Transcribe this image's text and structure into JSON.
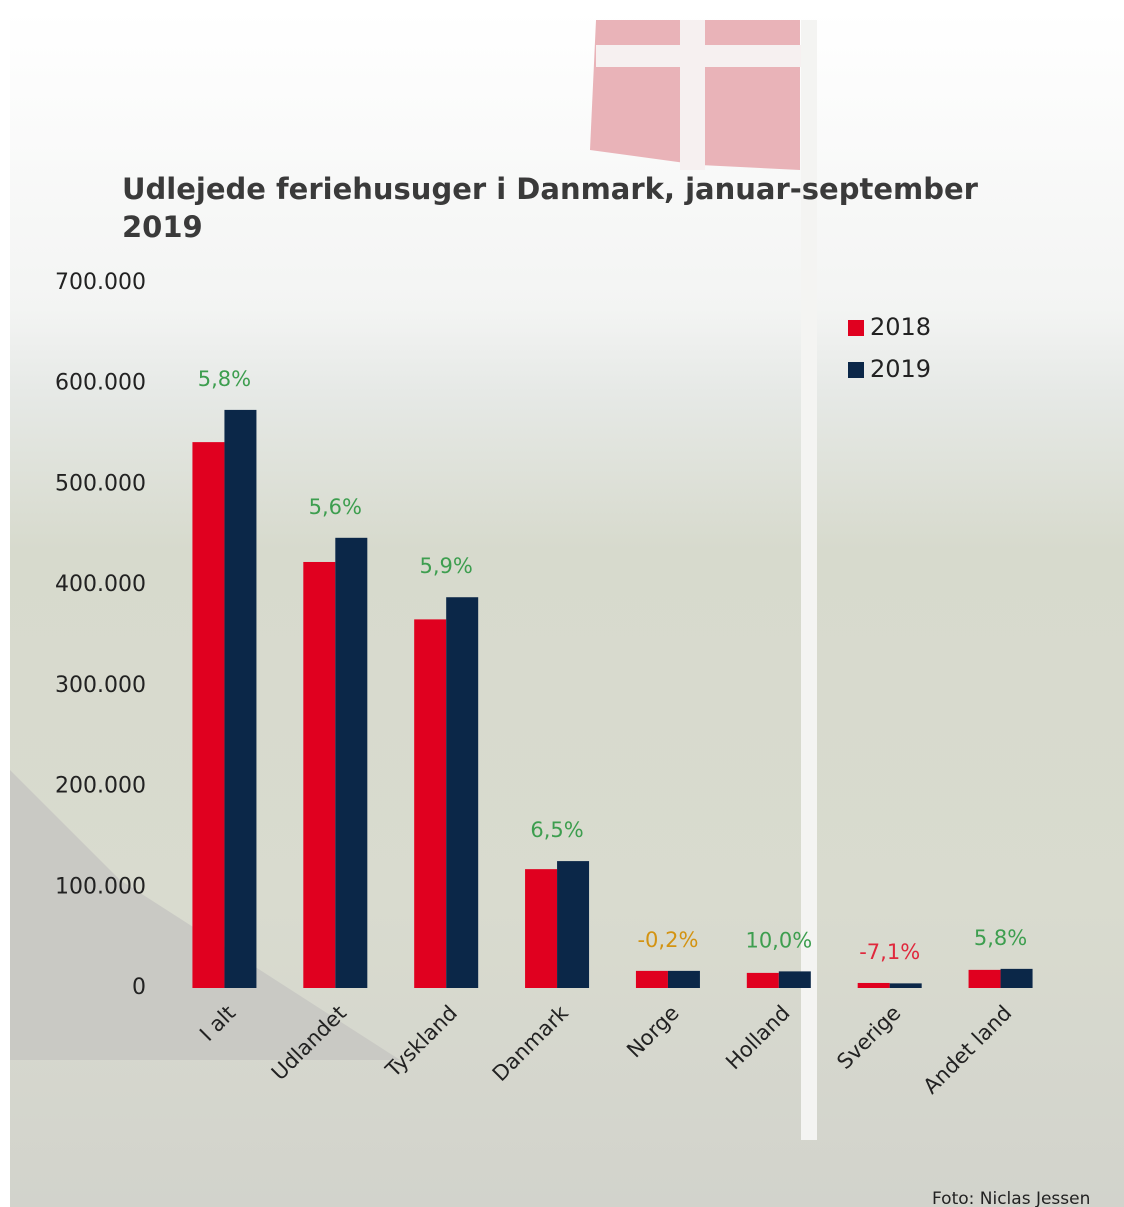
{
  "chart_data": {
    "type": "bar",
    "title": "Udlejede feriehusuger i Danmark, januar-september 2019",
    "categories": [
      "I alt",
      "Udlandet",
      "Tyskland",
      "Danmark",
      "Norge",
      "Holland",
      "Sverige",
      "Andet land"
    ],
    "series": [
      {
        "name": "2018",
        "color": "#e0001f",
        "values": [
          542000,
          423000,
          366000,
          118000,
          17000,
          15000,
          5000,
          18000
        ]
      },
      {
        "name": "2019",
        "color": "#0b2748",
        "values": [
          574000,
          447000,
          388000,
          126000,
          17000,
          16500,
          4600,
          19000
        ]
      }
    ],
    "change_labels": [
      "5,8%",
      "5,6%",
      "5,9%",
      "6,5%",
      "-0,2%",
      "10,0%",
      "-7,1%",
      "5,8%"
    ],
    "change_colors": [
      "#3d9e4f",
      "#3d9e4f",
      "#3d9e4f",
      "#3d9e4f",
      "#d39312",
      "#3d9e4f",
      "#e0283c",
      "#3d9e4f"
    ],
    "ylim": [
      0,
      700000
    ],
    "yticks": [
      0,
      {
        "value": 100000,
        "label": "100.000"
      },
      {
        "value": 200000,
        "label": "200.000"
      },
      {
        "value": 300000,
        "label": "300.000"
      },
      {
        "value": 400000,
        "label": "400.000"
      },
      {
        "value": 500000,
        "label": "500.000"
      },
      {
        "value": 600000,
        "label": "600.000"
      },
      {
        "value": 700000,
        "label": "700.000"
      }
    ],
    "grid": false,
    "legend": "top-right",
    "credit": "Foto: Niclas Jessen"
  }
}
